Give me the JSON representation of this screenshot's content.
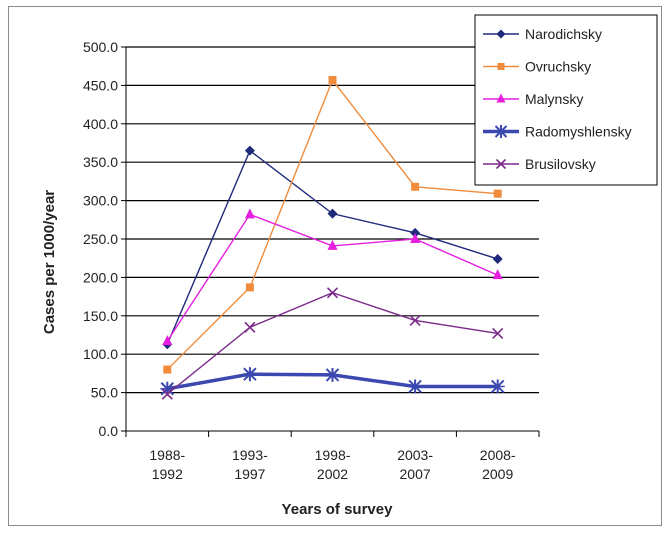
{
  "chart_data": {
    "type": "line",
    "title": "",
    "xlabel": "Years of survey",
    "ylabel": "Cases per 1000/year",
    "categories": [
      [
        "1988-",
        "1992"
      ],
      [
        "1993-",
        "1997"
      ],
      [
        "1998-",
        "2002"
      ],
      [
        "2003-",
        "2007"
      ],
      [
        "2008-",
        "2009"
      ]
    ],
    "ylim": [
      0,
      500
    ],
    "yticks": [
      "0.0",
      "50.0",
      "100.0",
      "150.0",
      "200.0",
      "250.0",
      "300.0",
      "350.0",
      "400.0",
      "450.0",
      "500.0"
    ],
    "grid": "horizontal",
    "legend_position": "top-right",
    "series": [
      {
        "name": "Narodichsky",
        "color": "#1f2a7a",
        "marker": "diamond",
        "values": [
          113,
          365,
          283,
          258,
          224
        ]
      },
      {
        "name": "Ovruchsky",
        "color": "#f08c3c",
        "marker": "square",
        "values": [
          80,
          187,
          457,
          318,
          309
        ]
      },
      {
        "name": "Malynsky",
        "color": "#e51ee0",
        "marker": "triangle",
        "values": [
          117,
          282,
          241,
          250,
          203
        ]
      },
      {
        "name": "Radomyshlensky",
        "color": "#3a48b0",
        "marker": "asterisk",
        "values": [
          55,
          74,
          73,
          58,
          58
        ]
      },
      {
        "name": "Brusilovsky",
        "color": "#7b2a8a",
        "marker": "cross",
        "values": [
          48,
          135,
          180,
          144,
          127
        ]
      }
    ]
  }
}
